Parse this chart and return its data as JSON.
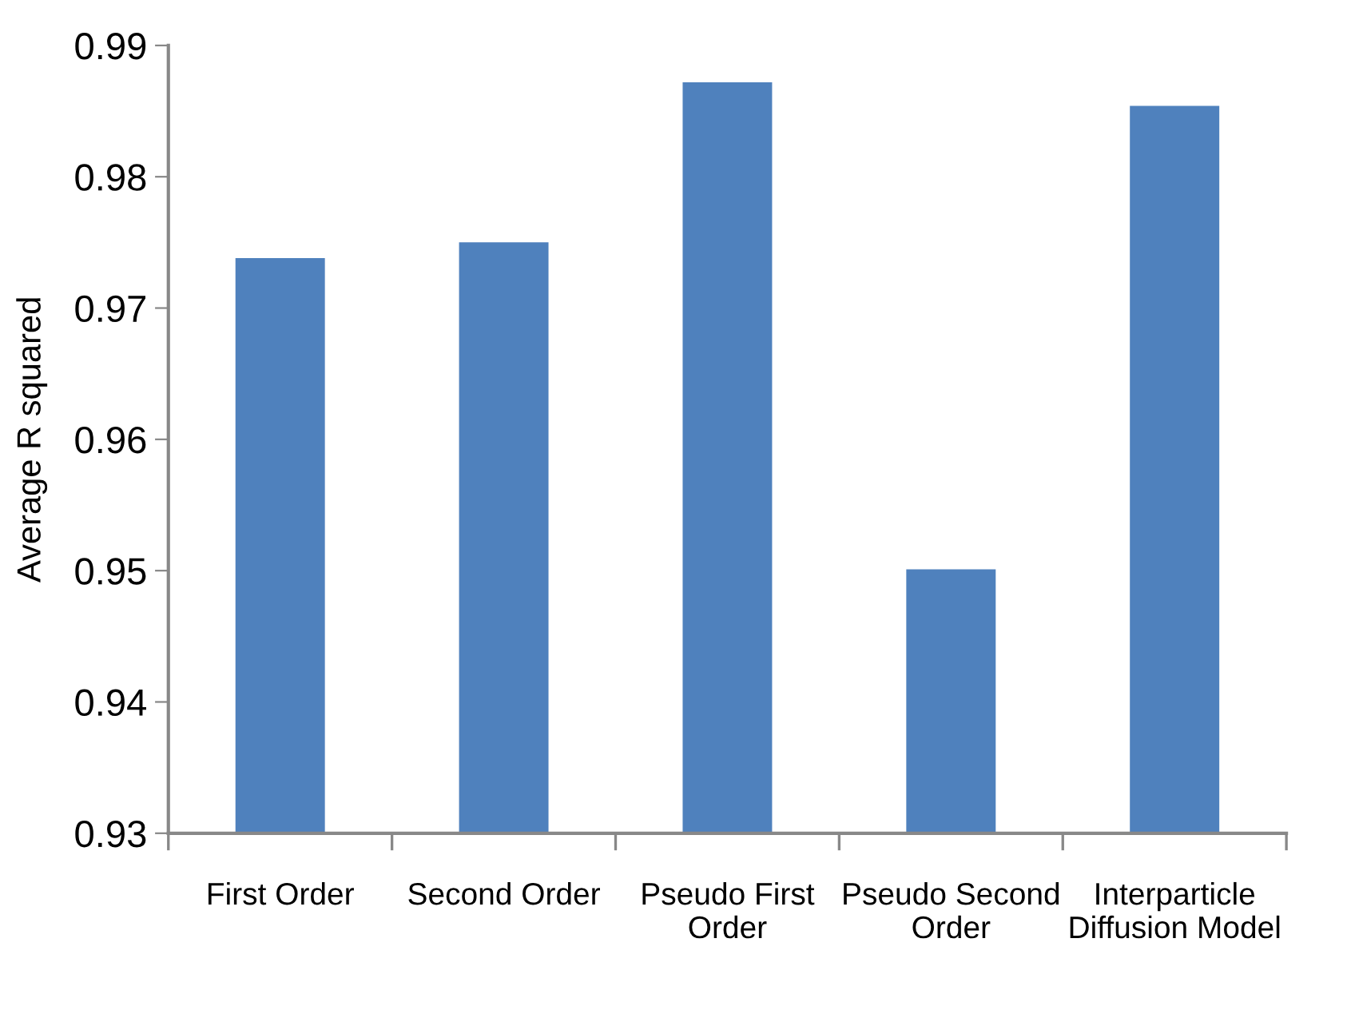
{
  "chart_data": {
    "type": "bar",
    "ylabel": "Average R squared",
    "categories": [
      "First Order",
      "Second Order",
      "Pseudo First\nOrder",
      "Pseudo Second\nOrder",
      "Interparticle\nDiffusion Model"
    ],
    "values": [
      0.9738,
      0.975,
      0.9872,
      0.9501,
      0.9854
    ],
    "color": "#4f81bd",
    "ylim": [
      0.93,
      0.99
    ],
    "yticks": [
      0.93,
      0.94,
      0.95,
      0.96,
      0.97,
      0.98,
      0.99
    ],
    "grid": false,
    "legend": false
  }
}
